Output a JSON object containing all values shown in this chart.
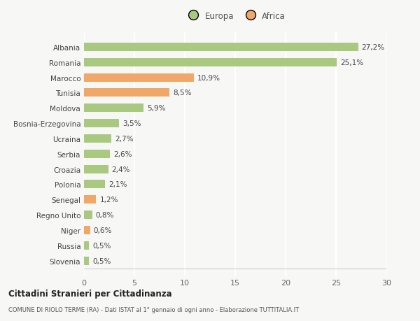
{
  "categories": [
    "Albania",
    "Romania",
    "Marocco",
    "Tunisia",
    "Moldova",
    "Bosnia-Erzegovina",
    "Ucraina",
    "Serbia",
    "Croazia",
    "Polonia",
    "Senegal",
    "Regno Unito",
    "Niger",
    "Russia",
    "Slovenia"
  ],
  "values": [
    27.2,
    25.1,
    10.9,
    8.5,
    5.9,
    3.5,
    2.7,
    2.6,
    2.4,
    2.1,
    1.2,
    0.8,
    0.6,
    0.5,
    0.5
  ],
  "labels": [
    "27,2%",
    "25,1%",
    "10,9%",
    "8,5%",
    "5,9%",
    "3,5%",
    "2,7%",
    "2,6%",
    "2,4%",
    "2,1%",
    "1,2%",
    "0,8%",
    "0,6%",
    "0,5%",
    "0,5%"
  ],
  "continent": [
    "Europa",
    "Europa",
    "Africa",
    "Africa",
    "Europa",
    "Europa",
    "Europa",
    "Europa",
    "Europa",
    "Europa",
    "Africa",
    "Europa",
    "Africa",
    "Europa",
    "Europa"
  ],
  "color_europa": "#a8c97f",
  "color_africa": "#f0a868",
  "background_color": "#f7f7f5",
  "title": "Cittadini Stranieri per Cittadinanza",
  "subtitle": "COMUNE DI RIOLO TERME (RA) - Dati ISTAT al 1° gennaio di ogni anno - Elaborazione TUTTITALIA.IT",
  "xlim": [
    0,
    30
  ],
  "xticks": [
    0,
    5,
    10,
    15,
    20,
    25,
    30
  ],
  "legend_europa": "Europa",
  "legend_africa": "Africa"
}
